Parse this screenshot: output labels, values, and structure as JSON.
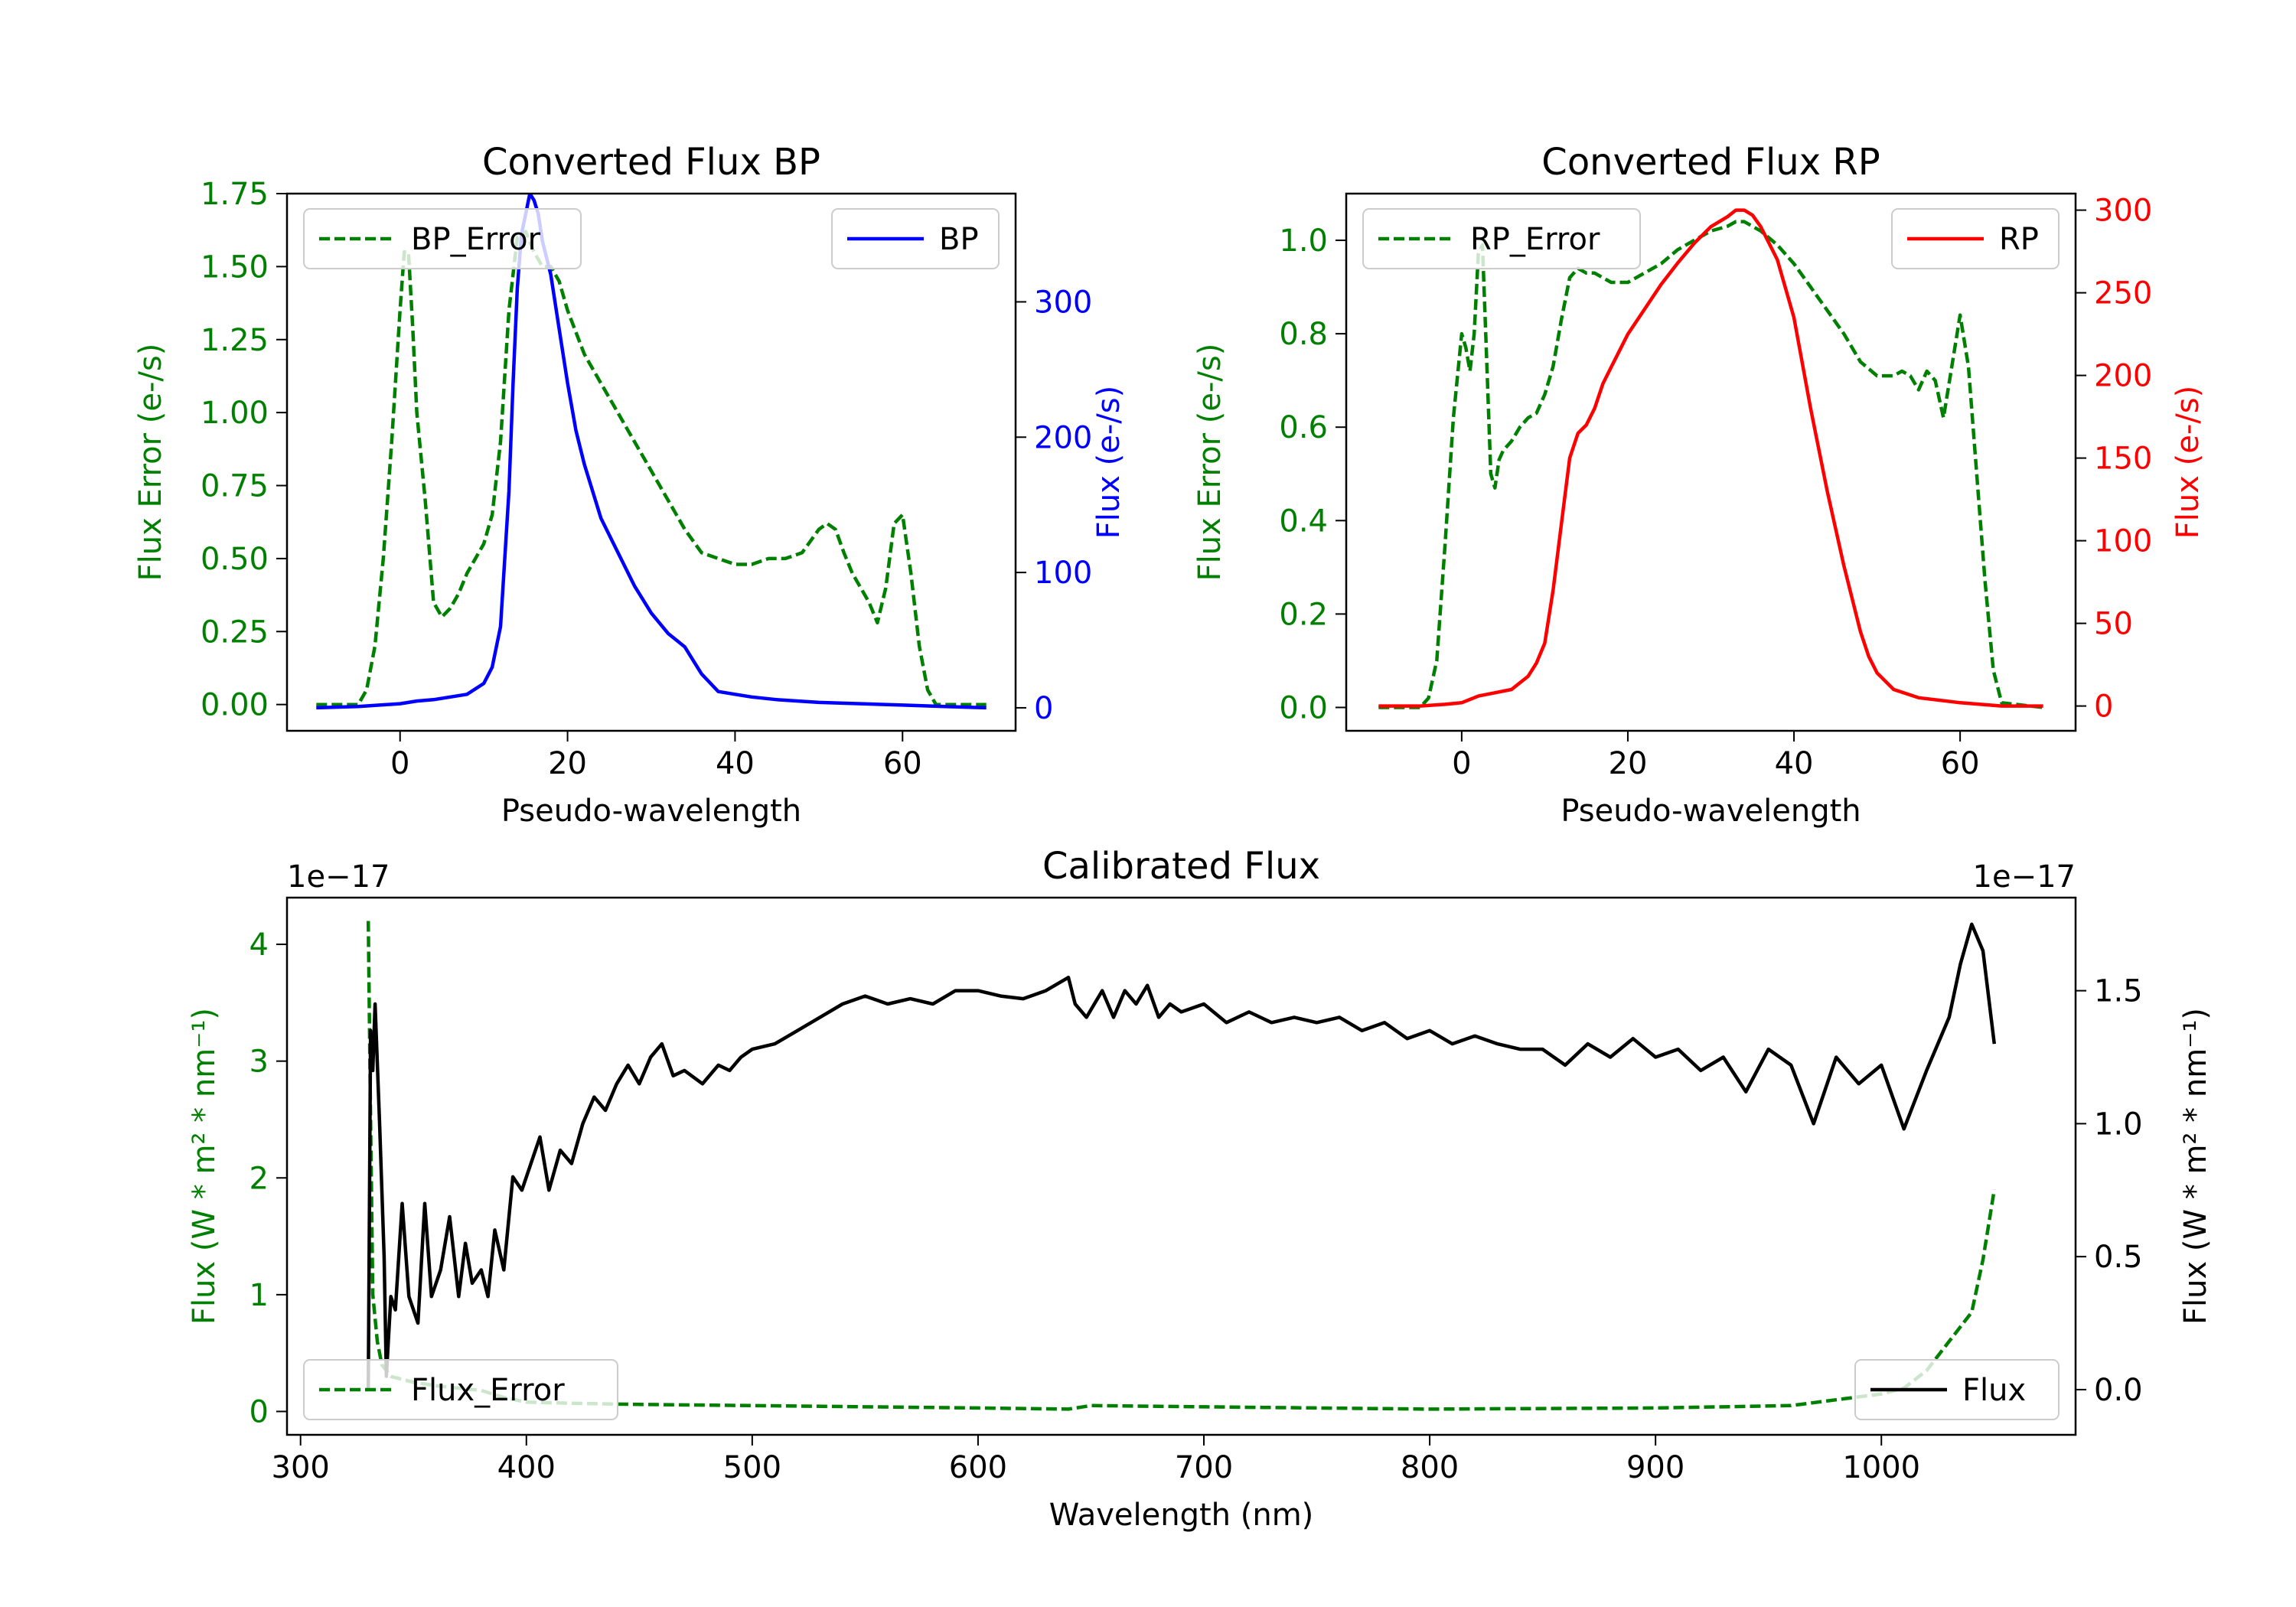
{
  "chart_data": [
    {
      "id": "bp",
      "type": "line",
      "title": "Converted Flux BP",
      "xlabel": "Pseudo-wavelength",
      "ylabel_left": "Flux Error (e-/s)",
      "ylabel_right": "Flux (e-/s)",
      "xlim": [
        -13.5,
        73.5
      ],
      "ylim_left": [
        -0.09,
        1.75
      ],
      "ylim_right": [
        -17,
        380
      ],
      "x_ticks": [
        0,
        20,
        40,
        60
      ],
      "x_tick_labels": [
        "0",
        "20",
        "40",
        "60"
      ],
      "yl_ticks": [
        0,
        0.25,
        0.5,
        0.75,
        1.0,
        1.25,
        1.5,
        1.75
      ],
      "yl_tick_labels": [
        "0.00",
        "0.25",
        "0.50",
        "0.75",
        "1.00",
        "1.25",
        "1.50",
        "1.75"
      ],
      "yr_ticks": [
        0,
        100,
        200,
        300
      ],
      "yr_tick_labels": [
        "0",
        "100",
        "200",
        "300"
      ],
      "legend_left": "top-left",
      "legend_right": "top-right",
      "series": [
        {
          "name": "BP_Error",
          "axis": "left",
          "color": "#008000",
          "dash": "dashed",
          "x": [
            -10,
            -5,
            -4,
            -3,
            -2,
            -1,
            0,
            0.5,
            1,
            1.5,
            2,
            3,
            4,
            5,
            6,
            7,
            8,
            9,
            10,
            11,
            12,
            13,
            14,
            15,
            16,
            17,
            18,
            19,
            20,
            22,
            24,
            26,
            28,
            30,
            32,
            34,
            36,
            38,
            40,
            42,
            44,
            46,
            48,
            50,
            51,
            52,
            53,
            54,
            55,
            56,
            57,
            58,
            59,
            60,
            61,
            62,
            63,
            64,
            65,
            70
          ],
          "y": [
            0.0,
            0.0,
            0.05,
            0.2,
            0.5,
            0.9,
            1.35,
            1.55,
            1.55,
            1.3,
            1.0,
            0.7,
            0.35,
            0.3,
            0.33,
            0.38,
            0.45,
            0.5,
            0.55,
            0.65,
            0.9,
            1.35,
            1.6,
            1.62,
            1.55,
            1.5,
            1.5,
            1.45,
            1.35,
            1.2,
            1.1,
            1.0,
            0.9,
            0.8,
            0.7,
            0.6,
            0.52,
            0.5,
            0.48,
            0.48,
            0.5,
            0.5,
            0.52,
            0.6,
            0.62,
            0.6,
            0.52,
            0.45,
            0.4,
            0.35,
            0.28,
            0.4,
            0.62,
            0.65,
            0.45,
            0.2,
            0.05,
            0.0,
            0.0,
            0.0
          ]
        },
        {
          "name": "BP",
          "axis": "right",
          "color": "#0000ff",
          "dash": "solid",
          "x": [
            -10,
            -5,
            0,
            2,
            4,
            6,
            8,
            10,
            11,
            12,
            13,
            13.5,
            14,
            14.5,
            15,
            15.5,
            16,
            16.5,
            17,
            18,
            19,
            20,
            21,
            22,
            24,
            26,
            28,
            30,
            32,
            33,
            34,
            36,
            38,
            40,
            42,
            45,
            50,
            55,
            60,
            65,
            70
          ],
          "y": [
            0,
            1,
            3,
            5,
            6,
            8,
            10,
            18,
            30,
            60,
            160,
            240,
            310,
            350,
            365,
            380,
            375,
            365,
            345,
            320,
            280,
            240,
            205,
            180,
            140,
            115,
            90,
            70,
            55,
            50,
            45,
            25,
            12,
            10,
            8,
            6,
            4,
            3,
            2,
            1,
            0
          ]
        }
      ]
    },
    {
      "id": "rp",
      "type": "line",
      "title": "Converted Flux RP",
      "xlabel": "Pseudo-wavelength",
      "ylabel_left": "Flux Error (e-/s)",
      "ylabel_right": "Flux (e-/s)",
      "xlim": [
        -13.9,
        73.9
      ],
      "ylim_left": [
        -0.05,
        1.1
      ],
      "ylim_right": [
        -15,
        310
      ],
      "x_ticks": [
        0,
        20,
        40,
        60
      ],
      "x_tick_labels": [
        "0",
        "20",
        "40",
        "60"
      ],
      "yl_ticks": [
        0.0,
        0.2,
        0.4,
        0.6,
        0.8,
        1.0
      ],
      "yl_tick_labels": [
        "0.0",
        "0.2",
        "0.4",
        "0.6",
        "0.8",
        "1.0"
      ],
      "yr_ticks": [
        0,
        50,
        100,
        150,
        200,
        250,
        300
      ],
      "yr_tick_labels": [
        "0",
        "50",
        "100",
        "150",
        "200",
        "250",
        "300"
      ],
      "legend_left": "top-left",
      "legend_right": "top-right",
      "series": [
        {
          "name": "RP_Error",
          "axis": "left",
          "color": "#008000",
          "dash": "dashed",
          "x": [
            -10,
            -5,
            -4,
            -3,
            -2,
            -1,
            0,
            0.5,
            1,
            1.5,
            2,
            2.5,
            3,
            3.5,
            4,
            4.5,
            5,
            6,
            7,
            8,
            9,
            10,
            11,
            12,
            13,
            14,
            15,
            16,
            18,
            20,
            22,
            24,
            26,
            28,
            30,
            32,
            33,
            34,
            36,
            38,
            40,
            42,
            44,
            46,
            48,
            50,
            51,
            52,
            53,
            54,
            55,
            56,
            57,
            58,
            59,
            60,
            61,
            62,
            63,
            64,
            65,
            70
          ],
          "y": [
            0.0,
            0.0,
            0.02,
            0.1,
            0.35,
            0.62,
            0.8,
            0.77,
            0.72,
            0.8,
            0.97,
            0.99,
            0.75,
            0.5,
            0.47,
            0.53,
            0.55,
            0.57,
            0.6,
            0.62,
            0.63,
            0.67,
            0.73,
            0.83,
            0.92,
            0.94,
            0.93,
            0.93,
            0.91,
            0.91,
            0.93,
            0.95,
            0.98,
            1.0,
            1.02,
            1.03,
            1.04,
            1.04,
            1.02,
            0.99,
            0.95,
            0.9,
            0.85,
            0.8,
            0.74,
            0.71,
            0.71,
            0.71,
            0.72,
            0.71,
            0.68,
            0.72,
            0.7,
            0.62,
            0.73,
            0.84,
            0.73,
            0.5,
            0.27,
            0.08,
            0.01,
            0.0
          ]
        },
        {
          "name": "RP",
          "axis": "right",
          "color": "#ff0000",
          "dash": "solid",
          "x": [
            -10,
            -5,
            -2,
            0,
            2,
            4,
            6,
            8,
            9,
            10,
            11,
            12,
            13,
            14,
            15,
            16,
            17,
            18,
            19,
            20,
            22,
            24,
            26,
            28,
            30,
            32,
            33,
            34,
            35,
            36,
            38,
            40,
            42,
            44,
            46,
            48,
            49,
            50,
            52,
            55,
            60,
            65,
            70
          ],
          "y": [
            0,
            0,
            1,
            2,
            6,
            8,
            10,
            18,
            26,
            38,
            70,
            110,
            150,
            165,
            170,
            180,
            195,
            205,
            215,
            225,
            240,
            255,
            268,
            280,
            290,
            296,
            300,
            300,
            297,
            290,
            270,
            235,
            180,
            130,
            85,
            45,
            30,
            20,
            10,
            5,
            2,
            0,
            0
          ]
        }
      ]
    },
    {
      "id": "cal",
      "type": "line",
      "title": "Calibrated Flux",
      "xlabel": "Wavelength (nm)",
      "ylabel_left": "Flux (W * m² * nm⁻¹)",
      "ylabel_right": "Flux (W * m² * nm⁻¹)",
      "offset_left": "1e−17",
      "offset_right": "1e−17",
      "xlim": [
        294,
        1086
      ],
      "ylim_left": [
        -0.2,
        4.4
      ],
      "ylim_right": [
        -0.17,
        1.85
      ],
      "x_ticks": [
        300,
        400,
        500,
        600,
        700,
        800,
        900,
        1000
      ],
      "x_tick_labels": [
        "300",
        "400",
        "500",
        "600",
        "700",
        "800",
        "900",
        "1000"
      ],
      "yl_ticks": [
        0,
        1,
        2,
        3,
        4
      ],
      "yl_tick_labels": [
        "0",
        "1",
        "2",
        "3",
        "4"
      ],
      "yr_ticks": [
        0.0,
        0.5,
        1.0,
        1.5
      ],
      "yr_tick_labels": [
        "0.0",
        "0.5",
        "1.0",
        "1.5"
      ],
      "legend_left": "bottom-left",
      "legend_right": "bottom-right",
      "series": [
        {
          "name": "Flux_Error",
          "axis": "left",
          "color": "#008000",
          "dash": "dashed",
          "x": [
            330,
            331,
            332,
            334,
            336,
            340,
            350,
            360,
            370,
            380,
            390,
            400,
            420,
            450,
            500,
            600,
            640,
            650,
            700,
            800,
            900,
            960,
            980,
            1000,
            1010,
            1020,
            1030,
            1040,
            1045,
            1050
          ],
          "y": [
            4.2,
            2.5,
            1.0,
            0.6,
            0.4,
            0.3,
            0.25,
            0.22,
            0.2,
            0.18,
            0.12,
            0.08,
            0.07,
            0.06,
            0.05,
            0.03,
            0.02,
            0.05,
            0.04,
            0.02,
            0.03,
            0.05,
            0.1,
            0.15,
            0.2,
            0.35,
            0.6,
            0.85,
            1.3,
            1.9
          ]
        },
        {
          "name": "Flux",
          "axis": "right",
          "color": "#000000",
          "dash": "solid",
          "x": [
            330,
            331,
            332,
            333,
            335,
            337,
            338,
            340,
            342,
            345,
            348,
            352,
            355,
            358,
            362,
            366,
            370,
            373,
            376,
            380,
            383,
            386,
            390,
            394,
            398,
            402,
            406,
            410,
            415,
            420,
            425,
            430,
            435,
            440,
            445,
            450,
            455,
            460,
            465,
            470,
            478,
            485,
            490,
            495,
            500,
            510,
            520,
            530,
            540,
            550,
            560,
            570,
            580,
            590,
            600,
            610,
            620,
            630,
            640,
            643,
            648,
            655,
            660,
            665,
            670,
            675,
            680,
            685,
            690,
            700,
            710,
            720,
            730,
            740,
            750,
            760,
            770,
            780,
            790,
            800,
            810,
            820,
            830,
            840,
            850,
            860,
            870,
            880,
            890,
            900,
            910,
            920,
            930,
            940,
            950,
            960,
            970,
            980,
            990,
            1000,
            1010,
            1020,
            1030,
            1035,
            1040,
            1045,
            1050
          ],
          "y": [
            0.0,
            1.35,
            1.2,
            1.45,
            1.0,
            0.5,
            0.05,
            0.35,
            0.3,
            0.7,
            0.35,
            0.25,
            0.7,
            0.35,
            0.45,
            0.65,
            0.35,
            0.55,
            0.4,
            0.45,
            0.35,
            0.6,
            0.45,
            0.8,
            0.75,
            0.85,
            0.95,
            0.75,
            0.9,
            0.85,
            1.0,
            1.1,
            1.05,
            1.15,
            1.22,
            1.15,
            1.25,
            1.3,
            1.18,
            1.2,
            1.15,
            1.22,
            1.2,
            1.25,
            1.28,
            1.3,
            1.35,
            1.4,
            1.45,
            1.48,
            1.45,
            1.47,
            1.45,
            1.5,
            1.5,
            1.48,
            1.47,
            1.5,
            1.55,
            1.45,
            1.4,
            1.5,
            1.4,
            1.5,
            1.45,
            1.52,
            1.4,
            1.45,
            1.42,
            1.45,
            1.38,
            1.42,
            1.38,
            1.4,
            1.38,
            1.4,
            1.35,
            1.38,
            1.32,
            1.35,
            1.3,
            1.33,
            1.3,
            1.28,
            1.28,
            1.22,
            1.3,
            1.25,
            1.32,
            1.25,
            1.28,
            1.2,
            1.25,
            1.12,
            1.28,
            1.22,
            1.0,
            1.25,
            1.15,
            1.22,
            0.98,
            1.2,
            1.4,
            1.6,
            1.75,
            1.65,
            1.3
          ]
        }
      ]
    }
  ]
}
